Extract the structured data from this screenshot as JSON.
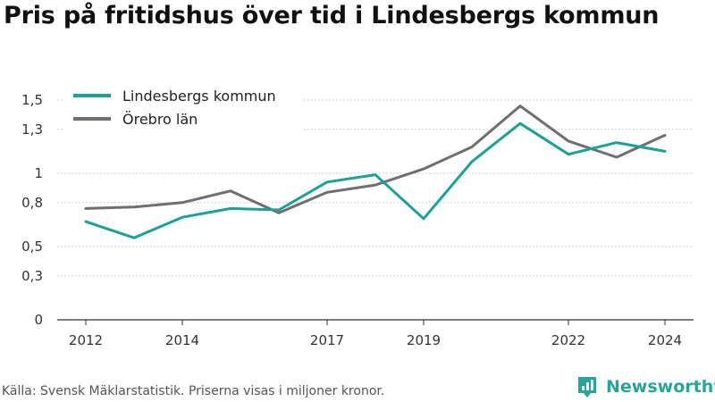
{
  "header": {
    "title": "Pris på fritidshus över tid i Lindesbergs kommun"
  },
  "footer": {
    "source": "Källa: Svensk Mäklarstatistik. Priserna visas i miljoner kronor."
  },
  "brand": {
    "name": "Newsworthy",
    "color": "#27a596"
  },
  "chart_data": {
    "type": "line",
    "title": "Pris på fritidshus över tid i Lindesbergs kommun",
    "xlabel": "",
    "ylabel": "",
    "x": [
      2012,
      2013,
      2014,
      2015,
      2016,
      2017,
      2018,
      2019,
      2020,
      2021,
      2022,
      2023,
      2024
    ],
    "x_tick_values": [
      2012,
      2014,
      2017,
      2019,
      2022,
      2024
    ],
    "x_tick_labels": [
      "2012",
      "2014",
      "2017",
      "2019",
      "2022",
      "2024"
    ],
    "y_tick_values": [
      0,
      0.3,
      0.5,
      0.8,
      1.0,
      1.3,
      1.5
    ],
    "y_tick_labels": [
      "0",
      "0,3",
      "0,5",
      "0,8",
      "1",
      "1,3",
      "1,5"
    ],
    "ylim": [
      0,
      1.5
    ],
    "grid": "horizontal",
    "legend_position": "top-left",
    "series": [
      {
        "name": "Lindesbergs kommun",
        "color": "#1aa394",
        "values": [
          0.67,
          0.56,
          0.7,
          0.76,
          0.75,
          0.94,
          0.99,
          0.69,
          1.08,
          1.34,
          1.13,
          1.21,
          1.15
        ]
      },
      {
        "name": "Örebro län",
        "color": "#6e6e73",
        "values": [
          0.76,
          0.77,
          0.8,
          0.88,
          0.73,
          0.87,
          0.92,
          1.03,
          1.18,
          1.46,
          1.22,
          1.11,
          1.26
        ]
      }
    ]
  }
}
